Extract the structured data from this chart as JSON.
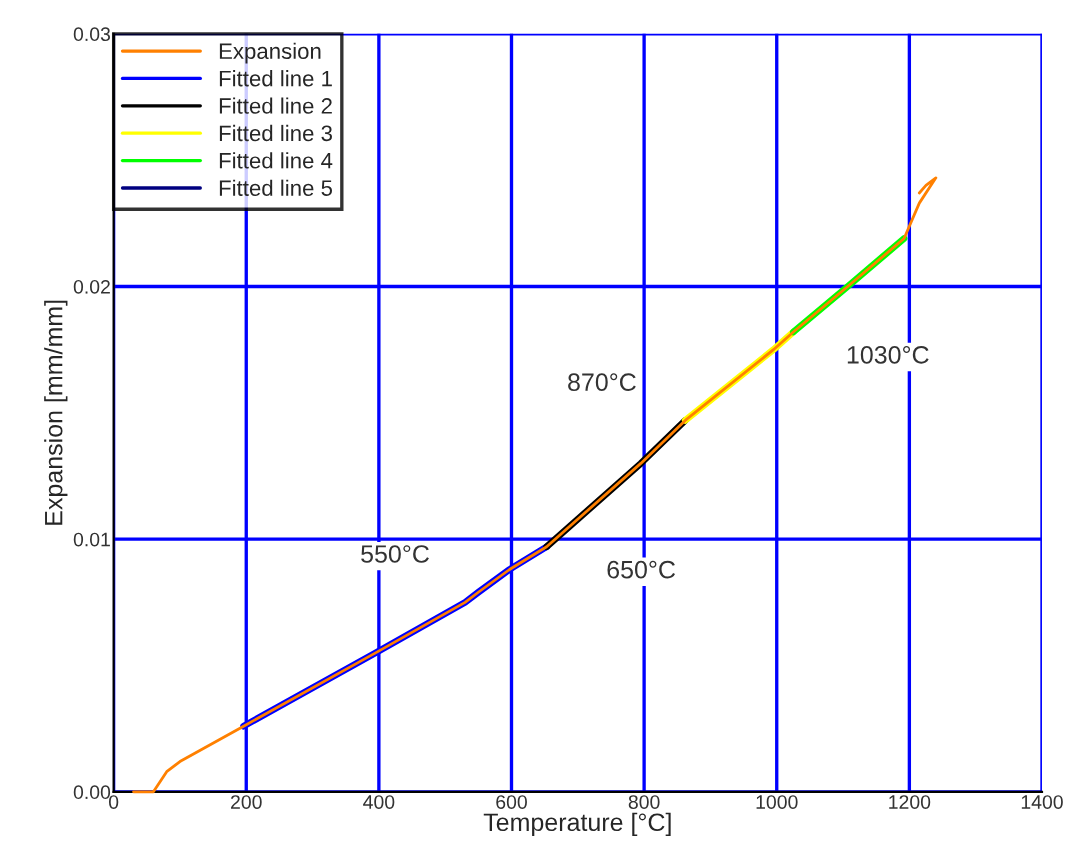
{
  "chart_data": {
    "type": "line",
    "xlabel": "Temperature [°C]",
    "ylabel": "Expansion [mm/mm]",
    "xlim": [
      0,
      1400
    ],
    "xticks": [
      0,
      200,
      400,
      600,
      800,
      1000,
      1200,
      1400
    ],
    "ylim": [
      0,
      0.03
    ],
    "yticks": [
      {
        "value": 0,
        "label": "0.00"
      },
      {
        "value": 0.01,
        "label": "0.01"
      },
      {
        "value": 0.02,
        "label": "0.02"
      },
      {
        "value": 0.03,
        "label": "0.03"
      }
    ],
    "grid": true,
    "legend": "top left",
    "line_style": "solid",
    "marker": "none",
    "series": [
      {
        "name": "Expansion",
        "color": "#ff8000",
        "x": [
          30,
          60,
          80,
          100,
          196,
          395,
          530,
          550,
          597,
          653,
          795,
          862,
          995,
          1025,
          1107,
          1192,
          1215,
          1240,
          1225,
          1215
        ],
        "values": [
          0,
          0,
          0.0008,
          0.0012,
          0.0026,
          0.0055,
          0.0075,
          0.0079,
          0.0088,
          0.0097,
          0.013,
          0.0147,
          0.0175,
          0.0182,
          0.02,
          0.0219,
          0.0233,
          0.0243,
          0.024,
          0.0237
        ]
      },
      {
        "name": "Fitted line 1",
        "color": "#0000ff",
        "x": [
          196,
          395,
          530,
          550,
          597,
          653
        ],
        "values": [
          0.0026,
          0.0055,
          0.0075,
          0.0079,
          0.0088,
          0.0097
        ]
      },
      {
        "name": "Fitted line 2",
        "color": "#000000",
        "x": [
          653,
          795,
          862
        ],
        "values": [
          0.0097,
          0.013,
          0.0147
        ]
      },
      {
        "name": "Fitted line 3",
        "color": "#ffff00",
        "x": [
          862,
          995,
          1025
        ],
        "values": [
          0.0147,
          0.0175,
          0.0182
        ]
      },
      {
        "name": "Fitted line 4",
        "color": "#00ff00",
        "x": [
          1025,
          1107,
          1192
        ],
        "values": [
          0.0182,
          0.02,
          0.0219
        ]
      },
      {
        "name": "Fitted line 5",
        "color": "#000080"
      }
    ],
    "annotations": [
      {
        "text": "550°C",
        "x": 550,
        "y": 0.0079
      },
      {
        "text": "650°C",
        "x": 653,
        "y": 0.0097
      },
      {
        "text": "870°C",
        "x": 862,
        "y": 0.0147
      },
      {
        "text": "1030°C",
        "x": 1025,
        "y": 0.0182
      }
    ]
  }
}
